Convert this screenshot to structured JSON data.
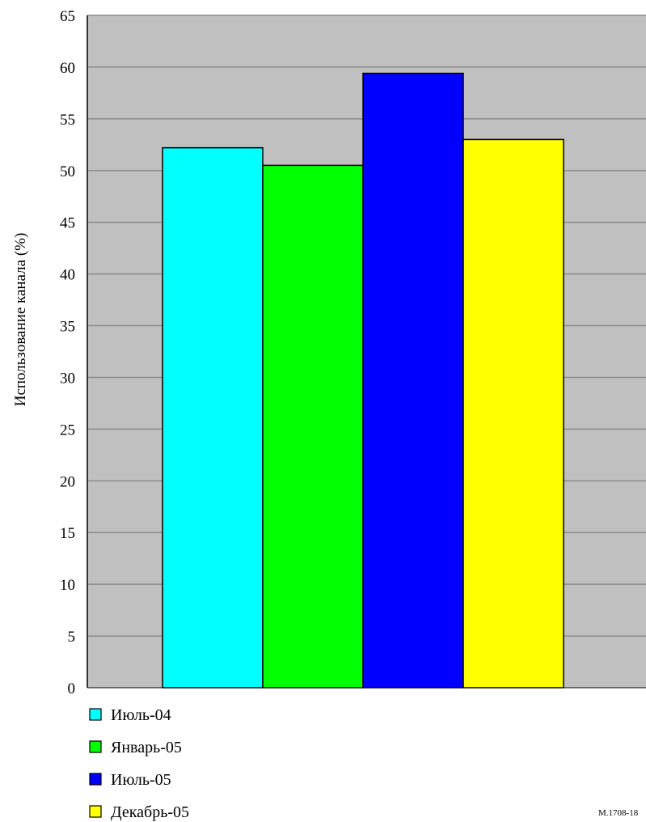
{
  "chart_data": {
    "type": "bar",
    "ylabel": "Использование канала (%)",
    "ylim": [
      0,
      65
    ],
    "yticks": [
      0,
      5,
      10,
      15,
      20,
      25,
      30,
      35,
      40,
      45,
      50,
      55,
      60,
      65
    ],
    "grid": true,
    "legend_position": "bottom-left",
    "background_color": "#c0c0c0",
    "series": [
      {
        "name": "Июль-04",
        "value": 52.2,
        "color": "#00ffff"
      },
      {
        "name": "Январь-05",
        "value": 50.5,
        "color": "#00ff00"
      },
      {
        "name": "Июль-05",
        "value": 59.4,
        "color": "#0000ff"
      },
      {
        "name": "Декабрь-05",
        "value": 53.0,
        "color": "#ffff00"
      }
    ]
  },
  "figure_id": "M.1708-18"
}
